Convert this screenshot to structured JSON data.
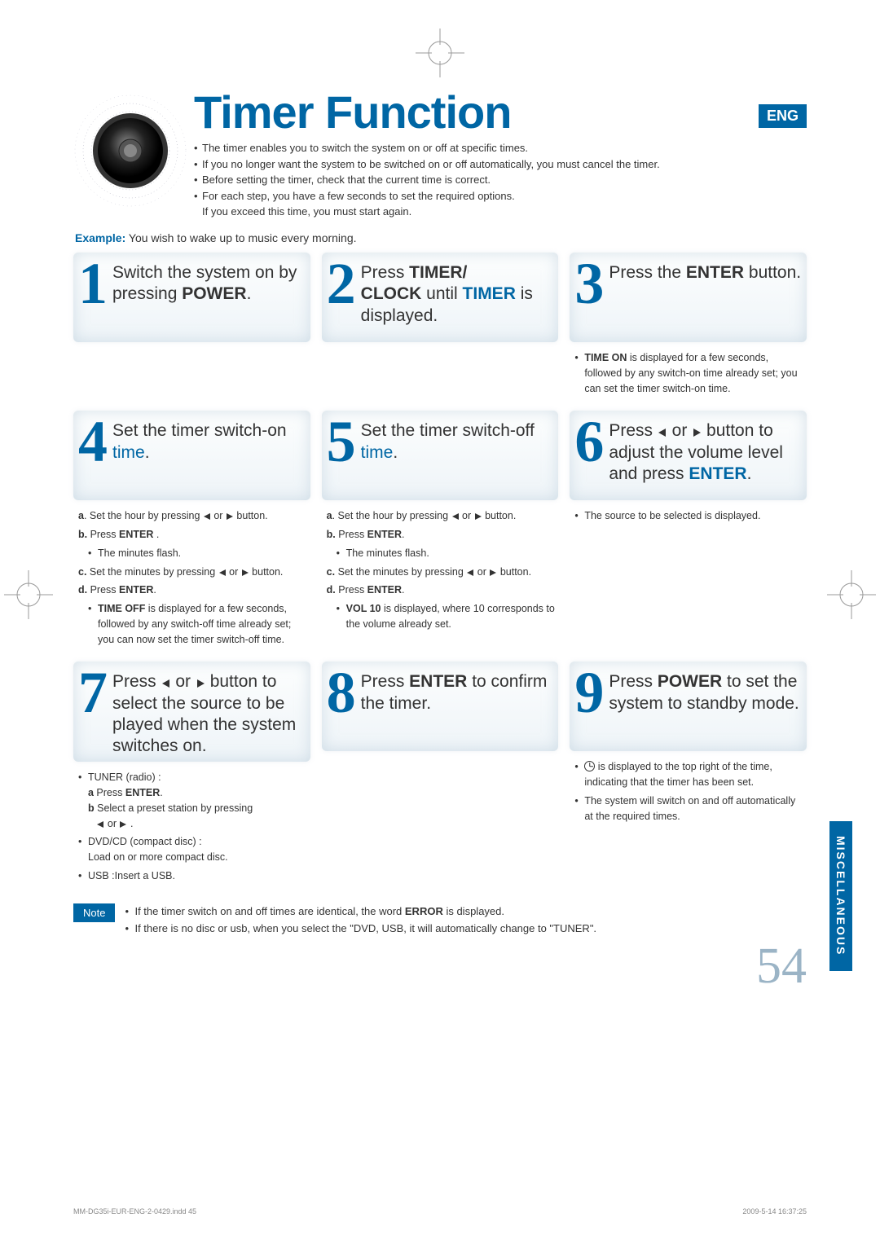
{
  "lang_badge": "ENG",
  "title": "Timer Function",
  "intro": [
    "The timer enables you to switch the system on or off at specific times.",
    "If you no longer want the system to be switched on or off automatically, you must cancel the timer.",
    "Before setting the timer, check that the current time is correct.",
    "For each step, you have a few seconds to set the required options.",
    "If you exceed this time, you must start again."
  ],
  "example_label": "Example:",
  "example_text": " You wish to wake up to music every morning.",
  "steps": [
    {
      "num": "1",
      "head_html": "Switch the system on by pressing <span class='kw'>POWER</span>.",
      "detail": []
    },
    {
      "num": "2",
      "head_html": "Press <span class='kw'>TIMER/<br>CLOCK</span> until <span class='kw blue'>TIMER</span> is displayed.",
      "detail": []
    },
    {
      "num": "3",
      "head_html": "Press the <span class='kw'>ENTER</span> button.",
      "detail": [
        {
          "type": "bullet",
          "html": "<b>TIME ON</b> is displayed for a few seconds, followed by any switch-on time already set; you can set the timer switch-on time."
        }
      ]
    },
    {
      "num": "4",
      "head_html": "Set the timer switch-on <span class='blue'>time</span>.",
      "detail": [
        {
          "type": "letter",
          "letter": "a",
          "html": ". Set the hour by pressing ◀ or ▶ button."
        },
        {
          "type": "letter",
          "letter": "b.",
          "html": " Press <b>ENTER</b> ."
        },
        {
          "type": "inner",
          "html": "The minutes flash."
        },
        {
          "type": "letter",
          "letter": "c.",
          "html": " Set the minutes by pressing ◀ or ▶ button."
        },
        {
          "type": "letter",
          "letter": "d.",
          "html": " Press <b>ENTER</b>."
        },
        {
          "type": "inner",
          "html": "<b>TIME OFF</b> is displayed for a few seconds, followed by any switch-off time already set; you can now set the timer switch-off time."
        }
      ]
    },
    {
      "num": "5",
      "head_html": "Set the timer switch-off <span class='blue'>time</span>.",
      "detail": [
        {
          "type": "letter",
          "letter": "a",
          "html": ". Set the hour by pressing ◀ or ▶ button."
        },
        {
          "type": "letter",
          "letter": "b.",
          "html": " Press <b>ENTER</b>."
        },
        {
          "type": "inner",
          "html": "The minutes flash."
        },
        {
          "type": "letter",
          "letter": "c.",
          "html": " Set the minutes by pressing ◀ or ▶ button."
        },
        {
          "type": "letter",
          "letter": "d.",
          "html": " Press <b>ENTER</b>."
        },
        {
          "type": "inner",
          "html": "<b>VOL 10</b> is displayed, where 10 corresponds to the volume already set."
        }
      ]
    },
    {
      "num": "6",
      "head_html": "Press ◀ or ▶ button to adjust the volume level and press <span class='kw blue'>ENTER</span>.",
      "detail": [
        {
          "type": "bullet",
          "html": "The source to be selected is displayed."
        }
      ]
    },
    {
      "num": "7",
      "head_html": "Press ◀ or ▶ button to select the source to be played when the system switches on.",
      "detail": [
        {
          "type": "bullet",
          "html": "TUNER (radio) :<br><b>a</b> Press <b>ENTER</b>.<br><b>b</b> Select a preset station by pressing<br>&nbsp;&nbsp;&nbsp;◀ or ▶ ."
        },
        {
          "type": "bullet",
          "html": "DVD/CD (compact disc) :<br>Load on or more compact disc."
        },
        {
          "type": "bullet",
          "html": "USB :Insert a USB."
        }
      ]
    },
    {
      "num": "8",
      "head_html": "Press <span class='kw'>ENTER</span> to confirm the timer.",
      "detail": []
    },
    {
      "num": "9",
      "head_html": "Press <span class='kw'>POWER</span> to set the system to standby mode.",
      "detail": [
        {
          "type": "bullet",
          "html": "<span class='clock-icon'></span> is displayed to the top right of the time, indicating that the timer has been set."
        },
        {
          "type": "bullet",
          "html": "The system will switch on and off automatically at the required times."
        }
      ]
    }
  ],
  "note_label": "Note",
  "notes": [
    "If the timer switch on and off times are identical, the word <b>ERROR</b> is displayed.",
    "If there is no disc or usb, when you select the \"DVD, USB, it will automatically change to \"TUNER\"."
  ],
  "page_number": "54",
  "misc_tab": "MISCELLANEOUS",
  "footer_left": "MM-DG35i-EUR-ENG-2-0429.indd   45",
  "footer_right": "2009-5-14   16:37:25",
  "colors": {
    "brand": "#0066a4",
    "page_num": "#9bb4c6"
  }
}
